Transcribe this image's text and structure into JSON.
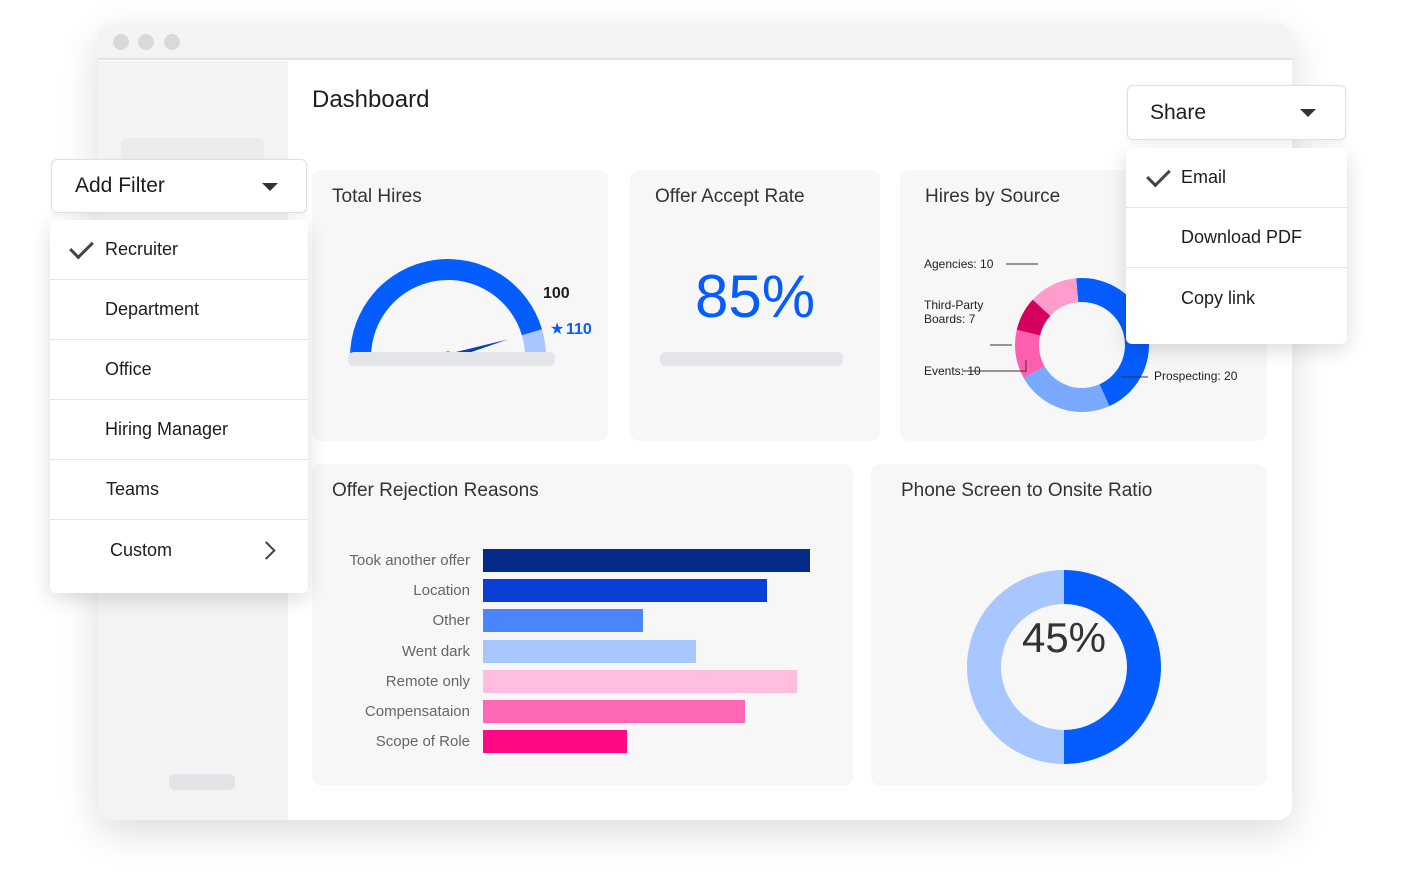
{
  "header": {
    "title": "Dashboard"
  },
  "filter": {
    "button_label": "Add Filter",
    "items": [
      {
        "label": "Recruiter",
        "checked": true
      },
      {
        "label": "Department",
        "checked": false
      },
      {
        "label": "Office",
        "checked": false
      },
      {
        "label": "Hiring Manager",
        "checked": false
      },
      {
        "label": "Teams",
        "checked": false
      },
      {
        "label": "Custom",
        "checked": false,
        "has_submenu": true
      }
    ]
  },
  "share": {
    "button_label": "Share",
    "items": [
      {
        "label": "Email",
        "checked": true
      },
      {
        "label": "Download PDF",
        "checked": false
      },
      {
        "label": "Copy link",
        "checked": false
      }
    ]
  },
  "cards": {
    "total_hires": {
      "title": "Total Hires"
    },
    "offer_accept": {
      "title": "Offer Accept Rate",
      "value": "85%"
    },
    "hires_by_source": {
      "title": "Hires by Source"
    },
    "rejection": {
      "title": "Offer Rejection Reasons"
    },
    "phone_screen": {
      "title": "Phone Screen to Onsite Ratio",
      "value": "45%"
    }
  },
  "colors": {
    "accent": "#055cff",
    "dark_blue": "#062a87",
    "light_blue": "#a8c6ff",
    "pink": "#ff5fae",
    "magenta": "#d5005d"
  },
  "chart_data": [
    {
      "type": "gauge",
      "name": "total_hires",
      "value": 100,
      "value_label": "100",
      "target": 110,
      "target_label": "110",
      "max": 110,
      "target_icon": "star-icon"
    },
    {
      "type": "pie",
      "name": "hires_by_source",
      "donut": true,
      "segments": [
        {
          "label": "",
          "value": 38,
          "color": "#055cff"
        },
        {
          "label": "Prospecting: 20",
          "value": 20,
          "color": "#7aaaff"
        },
        {
          "label": "Events: 10",
          "value": 10,
          "color": "#ff5fae"
        },
        {
          "label": "Third-Party Boards: 7",
          "label_lines": [
            "Third-Party",
            "Boards: 7"
          ],
          "value": 7,
          "color": "#d5005d"
        },
        {
          "label": "Agencies: 10",
          "value": 10,
          "color": "#ff9cce"
        }
      ]
    },
    {
      "type": "bar",
      "name": "offer_rejection_reasons",
      "orientation": "horizontal",
      "categories": [
        "Took another offer",
        "Location",
        "Other",
        "Went dark",
        "Remote only",
        "Compensataion",
        "Scope of Role"
      ],
      "values": [
        100,
        87,
        49,
        65,
        96,
        80,
        44
      ],
      "colors": [
        "#062a87",
        "#0a3fd6",
        "#4a85ff",
        "#a8c6ff",
        "#ffbde0",
        "#ff68b4",
        "#ff0a84"
      ]
    },
    {
      "type": "pie",
      "name": "phone_screen_ratio",
      "donut": true,
      "value": 45,
      "label": "45%",
      "colors": [
        "#055cff",
        "#a8c6ff"
      ]
    }
  ]
}
